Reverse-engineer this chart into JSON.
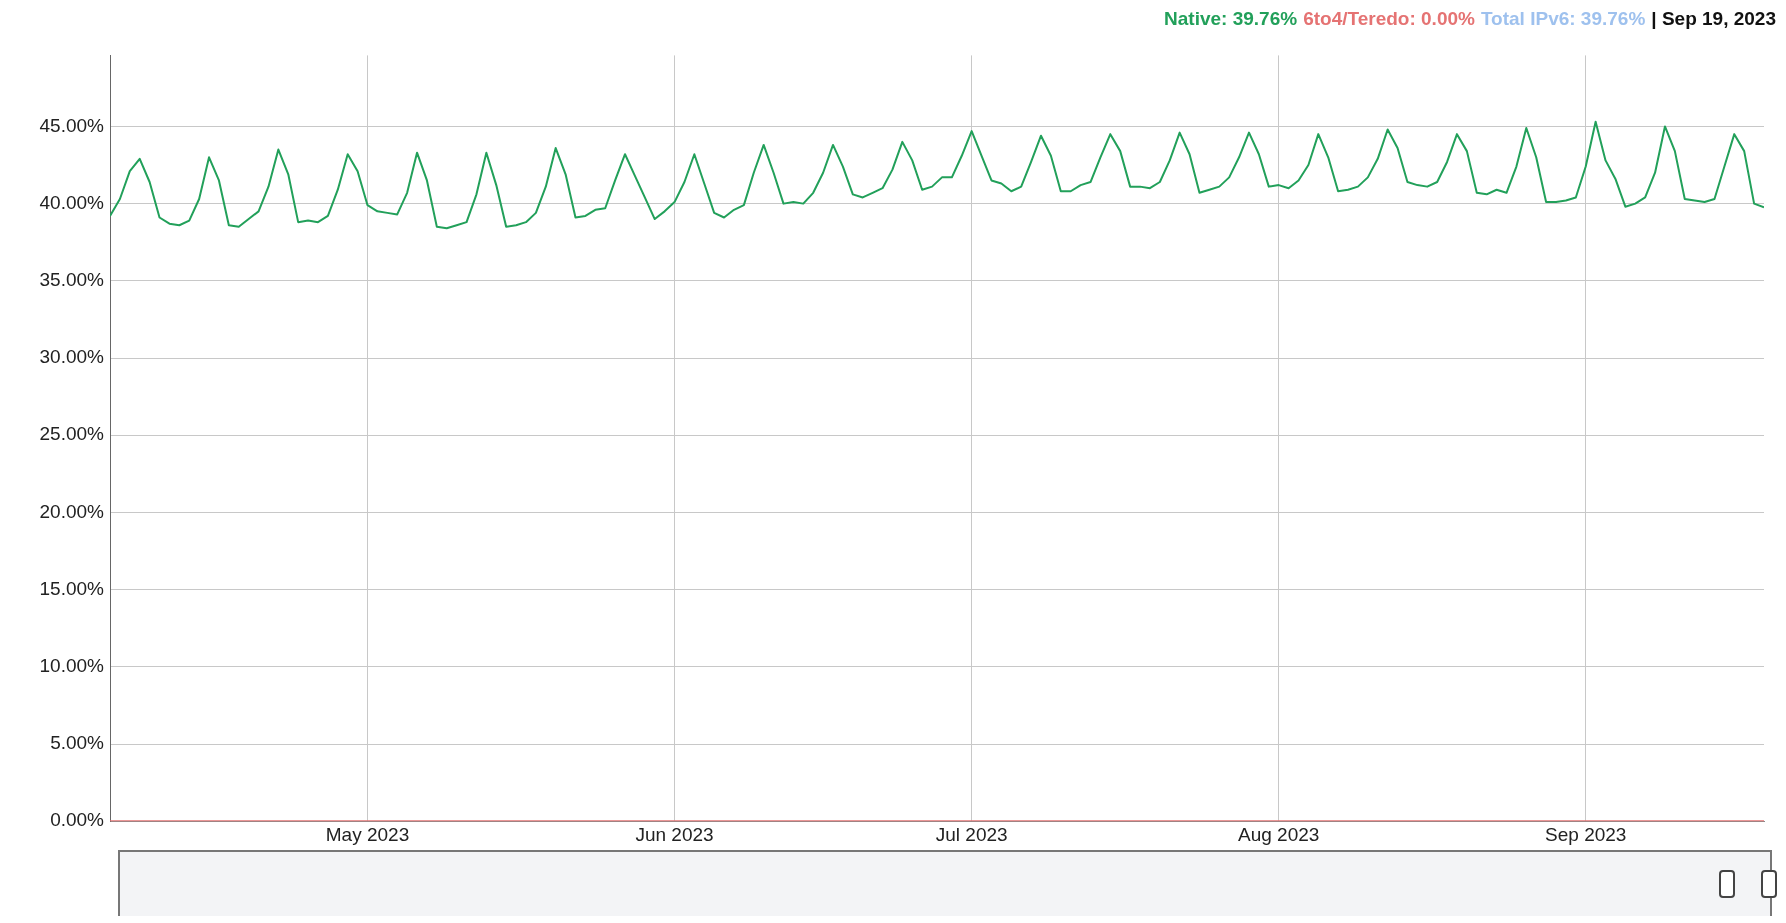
{
  "chart_data": {
    "type": "line",
    "annotations": [
      "Native: 39.76%",
      "6to4/Teredo: 0.00%",
      "Total IPv6: 39.76%",
      "| Sep 19, 2023"
    ],
    "xlim": [
      "2023-04-05",
      "2023-09-19"
    ],
    "xticks": [
      {
        "value": "2023-05-01",
        "label": "May 2023"
      },
      {
        "value": "2023-06-01",
        "label": "Jun 2023"
      },
      {
        "value": "2023-07-01",
        "label": "Jul 2023"
      },
      {
        "value": "2023-08-01",
        "label": "Aug 2023"
      },
      {
        "value": "2023-09-01",
        "label": "Sep 2023"
      }
    ],
    "ylim": [
      0,
      49.6
    ],
    "yticks": [
      {
        "value": 0,
        "label": "0.00%"
      },
      {
        "value": 5,
        "label": "5.00%"
      },
      {
        "value": 10,
        "label": "10.00%"
      },
      {
        "value": 15,
        "label": "15.00%"
      },
      {
        "value": 20,
        "label": "20.00%"
      },
      {
        "value": 25,
        "label": "25.00%"
      },
      {
        "value": 30,
        "label": "30.00%"
      },
      {
        "value": 35,
        "label": "35.00%"
      },
      {
        "value": 40,
        "label": "40.00%"
      },
      {
        "value": 45,
        "label": "45.00%"
      }
    ],
    "grid": true,
    "marker": "none",
    "line_style": "solid",
    "series": [
      {
        "color": "#e57373",
        "x": [
          "2023-04-05",
          "2023-09-19"
        ],
        "values": [
          0,
          0
        ]
      },
      {
        "color": "#22a05a",
        "x": [
          "2023-04-05",
          "2023-04-06",
          "2023-04-07",
          "2023-04-08",
          "2023-04-09",
          "2023-04-10",
          "2023-04-11",
          "2023-04-12",
          "2023-04-13",
          "2023-04-14",
          "2023-04-15",
          "2023-04-16",
          "2023-04-17",
          "2023-04-18",
          "2023-04-19",
          "2023-04-20",
          "2023-04-21",
          "2023-04-22",
          "2023-04-23",
          "2023-04-24",
          "2023-04-25",
          "2023-04-26",
          "2023-04-27",
          "2023-04-28",
          "2023-04-29",
          "2023-04-30",
          "2023-05-01",
          "2023-05-02",
          "2023-05-03",
          "2023-05-04",
          "2023-05-05",
          "2023-05-06",
          "2023-05-07",
          "2023-05-08",
          "2023-05-09",
          "2023-05-10",
          "2023-05-11",
          "2023-05-12",
          "2023-05-13",
          "2023-05-14",
          "2023-05-15",
          "2023-05-16",
          "2023-05-17",
          "2023-05-18",
          "2023-05-19",
          "2023-05-20",
          "2023-05-21",
          "2023-05-22",
          "2023-05-23",
          "2023-05-24",
          "2023-05-25",
          "2023-05-26",
          "2023-05-27",
          "2023-05-28",
          "2023-05-29",
          "2023-05-30",
          "2023-05-31",
          "2023-06-01",
          "2023-06-02",
          "2023-06-03",
          "2023-06-04",
          "2023-06-05",
          "2023-06-06",
          "2023-06-07",
          "2023-06-08",
          "2023-06-09",
          "2023-06-10",
          "2023-06-11",
          "2023-06-12",
          "2023-06-13",
          "2023-06-14",
          "2023-06-15",
          "2023-06-16",
          "2023-06-17",
          "2023-06-18",
          "2023-06-19",
          "2023-06-20",
          "2023-06-21",
          "2023-06-22",
          "2023-06-23",
          "2023-06-24",
          "2023-06-25",
          "2023-06-26",
          "2023-06-27",
          "2023-06-28",
          "2023-06-29",
          "2023-06-30",
          "2023-07-01",
          "2023-07-02",
          "2023-07-03",
          "2023-07-04",
          "2023-07-05",
          "2023-07-06",
          "2023-07-07",
          "2023-07-08",
          "2023-07-09",
          "2023-07-10",
          "2023-07-11",
          "2023-07-12",
          "2023-07-13",
          "2023-07-14",
          "2023-07-15",
          "2023-07-16",
          "2023-07-17",
          "2023-07-18",
          "2023-07-19",
          "2023-07-20",
          "2023-07-21",
          "2023-07-22",
          "2023-07-23",
          "2023-07-24",
          "2023-07-25",
          "2023-07-26",
          "2023-07-27",
          "2023-07-28",
          "2023-07-29",
          "2023-07-30",
          "2023-07-31",
          "2023-08-01",
          "2023-08-02",
          "2023-08-03",
          "2023-08-04",
          "2023-08-05",
          "2023-08-06",
          "2023-08-07",
          "2023-08-08",
          "2023-08-09",
          "2023-08-10",
          "2023-08-11",
          "2023-08-12",
          "2023-08-13",
          "2023-08-14",
          "2023-08-15",
          "2023-08-16",
          "2023-08-17",
          "2023-08-18",
          "2023-08-19",
          "2023-08-20",
          "2023-08-21",
          "2023-08-22",
          "2023-08-23",
          "2023-08-24",
          "2023-08-25",
          "2023-08-26",
          "2023-08-27",
          "2023-08-28",
          "2023-08-29",
          "2023-08-30",
          "2023-08-31",
          "2023-09-01",
          "2023-09-02",
          "2023-09-03",
          "2023-09-04",
          "2023-09-05",
          "2023-09-06",
          "2023-09-07",
          "2023-09-08",
          "2023-09-09",
          "2023-09-10",
          "2023-09-11",
          "2023-09-12",
          "2023-09-13",
          "2023-09-14",
          "2023-09-15",
          "2023-09-16",
          "2023-09-17",
          "2023-09-18",
          "2023-09-19"
        ],
        "values": [
          39.2,
          40.3,
          42.1,
          42.9,
          41.4,
          39.1,
          38.7,
          38.6,
          38.9,
          40.3,
          43.0,
          41.5,
          38.6,
          38.5,
          39.0,
          39.5,
          41.1,
          43.5,
          41.9,
          38.8,
          38.9,
          38.8,
          39.2,
          40.9,
          43.2,
          42.1,
          39.9,
          39.5,
          39.4,
          39.3,
          40.7,
          43.3,
          41.5,
          38.5,
          38.4,
          38.6,
          38.8,
          40.6,
          43.3,
          41.2,
          38.5,
          38.6,
          38.8,
          39.4,
          41.1,
          43.6,
          41.9,
          39.1,
          39.2,
          39.6,
          39.7,
          41.5,
          43.2,
          41.8,
          40.4,
          39.0,
          39.5,
          40.1,
          41.4,
          43.2,
          41.3,
          39.4,
          39.1,
          39.6,
          39.9,
          42.0,
          43.8,
          42.0,
          40.0,
          40.1,
          40.0,
          40.7,
          42.0,
          43.8,
          42.4,
          40.6,
          40.4,
          40.7,
          41.0,
          42.2,
          44.0,
          42.8,
          40.9,
          41.1,
          41.7,
          41.7,
          43.1,
          44.7,
          43.1,
          41.5,
          41.3,
          40.8,
          41.1,
          42.7,
          44.4,
          43.1,
          40.8,
          40.8,
          41.2,
          41.4,
          43.0,
          44.5,
          43.4,
          41.1,
          41.1,
          41.0,
          41.4,
          42.8,
          44.6,
          43.2,
          40.7,
          40.9,
          41.1,
          41.7,
          43.0,
          44.6,
          43.2,
          41.1,
          41.2,
          41.0,
          41.5,
          42.5,
          44.5,
          43.0,
          40.8,
          40.9,
          41.1,
          41.7,
          42.9,
          44.8,
          43.6,
          41.4,
          41.2,
          41.1,
          41.4,
          42.7,
          44.5,
          43.4,
          40.7,
          40.6,
          40.9,
          40.7,
          42.4,
          44.9,
          43.0,
          40.1,
          40.1,
          40.2,
          40.4,
          42.4,
          45.3,
          42.8,
          41.6,
          39.8,
          40.0,
          40.4,
          42.0,
          45.0,
          43.4,
          40.3,
          40.2,
          40.1,
          40.3,
          42.4,
          44.5,
          43.4,
          40.0,
          39.76
        ]
      }
    ]
  }
}
